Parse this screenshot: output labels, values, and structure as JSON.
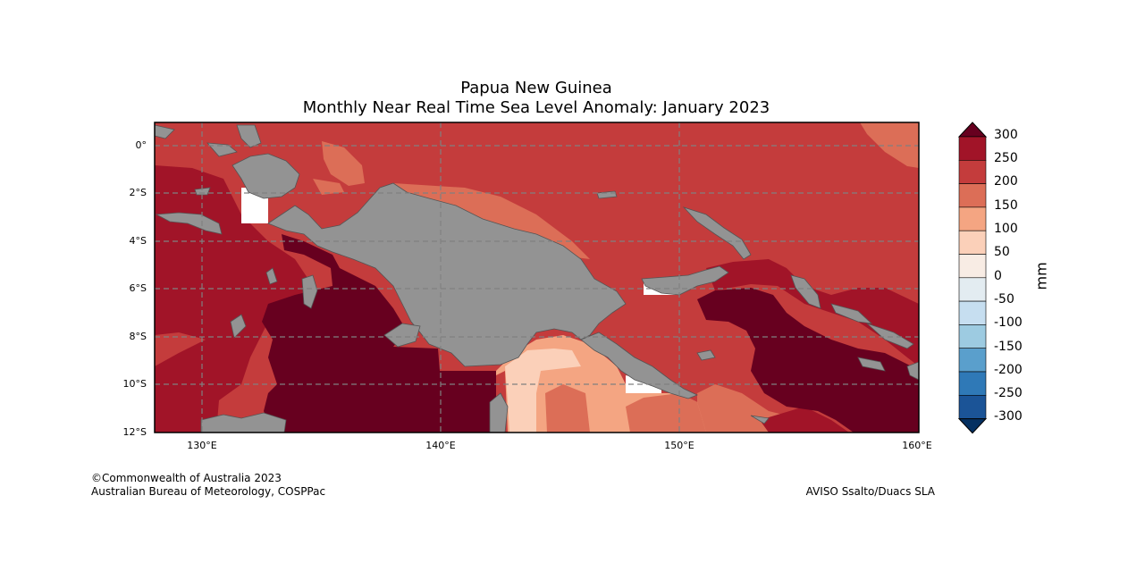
{
  "title": {
    "line1": "Papua New Guinea",
    "line2": "Monthly Near Real Time Sea Level Anomaly: January 2023"
  },
  "axes": {
    "lat_ticks": [
      "0°",
      "2°S",
      "4°S",
      "6°S",
      "8°S",
      "10°S",
      "12°S"
    ],
    "lon_ticks": [
      "130°E",
      "140°E",
      "150°E",
      "160°E"
    ],
    "extent": {
      "lon_min": 128,
      "lon_max": 160,
      "lat_min": -12,
      "lat_max": 1
    },
    "grid": "dashed"
  },
  "colorbar": {
    "unit": "mm",
    "labels": [
      "300",
      "250",
      "200",
      "150",
      "100",
      "50",
      "0",
      "-50",
      "-100",
      "-150",
      "-200",
      "-250",
      "-300"
    ],
    "colors": [
      "#67001f",
      "#a11428",
      "#c43c3c",
      "#dc6e57",
      "#f4a582",
      "#fbd0b9",
      "#f8ece4",
      "#e3ecf1",
      "#c6def0",
      "#9dcbe1",
      "#5a9fcc",
      "#2f79b7",
      "#1b5497",
      "#053061"
    ]
  },
  "colors": {
    "land": "#939393",
    "land_edge": "#555555",
    "gridline": "#808080"
  },
  "credits": {
    "copyright": "©Commonwealth of Australia 2023",
    "agency": "Australian Bureau of Meteorology, COSPPac",
    "source": "AVISO Ssalto/Duacs SLA"
  }
}
